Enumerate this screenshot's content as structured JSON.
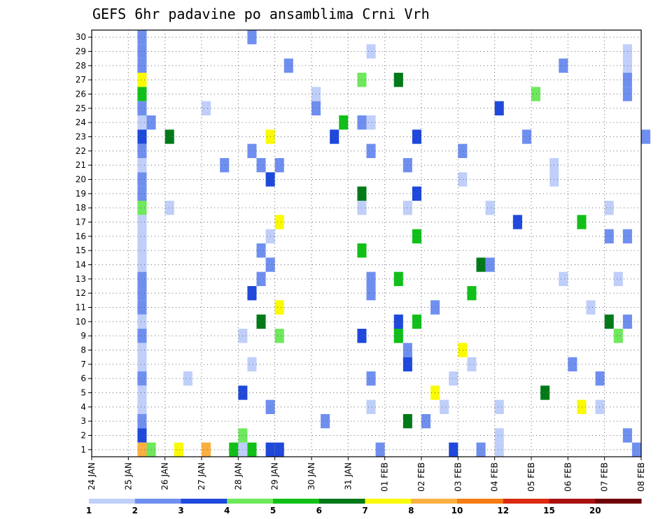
{
  "chart_data": {
    "type": "heatmap",
    "title": "GEFS 6hr padavine po ansamblima Crni Vrh",
    "xlabel": "",
    "ylabel": "",
    "x_tick_labels": [
      "24 JAN",
      "25 JAN",
      "26 JAN",
      "27 JAN",
      "28 JAN",
      "29 JAN",
      "30 JAN",
      "31 JAN",
      "01 FEB",
      "02 FEB",
      "03 FEB",
      "04 FEB",
      "05 FEB",
      "06 FEB",
      "07 FEB",
      "08 FEB"
    ],
    "y_tick_labels": [
      "1",
      "2",
      "3",
      "4",
      "5",
      "6",
      "7",
      "8",
      "9",
      "10",
      "11",
      "12",
      "13",
      "14",
      "15",
      "16",
      "17",
      "18",
      "19",
      "20",
      "21",
      "22",
      "23",
      "24",
      "25",
      "26",
      "27",
      "28",
      "29",
      "30"
    ],
    "xlim": [
      0,
      60
    ],
    "ylim": [
      0.5,
      30.5
    ],
    "time_step_hours": 6,
    "grid": true,
    "colorbar": {
      "position": "bottom",
      "bounds": [
        "1",
        "2",
        "3",
        "4",
        "5",
        "6",
        "7",
        "8",
        "10",
        "12",
        "15",
        "20"
      ],
      "colors": [
        "#bfcffa",
        "#6f8ff0",
        "#1f48dc",
        "#6ee85c",
        "#10c018",
        "#007a18",
        "#fafa00",
        "#fab040",
        "#f57c10",
        "#dc2a10",
        "#a81010",
        "#6e0008"
      ]
    },
    "cells": [
      [
        0,
        5,
        30,
        1
      ],
      [
        0,
        17,
        30,
        1
      ],
      [
        0,
        5,
        29,
        1
      ],
      [
        0,
        30,
        29,
        0
      ],
      [
        0,
        58,
        29,
        0
      ],
      [
        0,
        5,
        28,
        1
      ],
      [
        0,
        21,
        28,
        1
      ],
      [
        0,
        51,
        28,
        1
      ],
      [
        0,
        58,
        28,
        0
      ],
      [
        0,
        5,
        27,
        6
      ],
      [
        0,
        29,
        27,
        3
      ],
      [
        0,
        33,
        27,
        5
      ],
      [
        0,
        58,
        27,
        1
      ],
      [
        0,
        5,
        26,
        4
      ],
      [
        0,
        24,
        26,
        0
      ],
      [
        0,
        48,
        26,
        3
      ],
      [
        0,
        58,
        26,
        1
      ],
      [
        0,
        5,
        25,
        1
      ],
      [
        0,
        12,
        25,
        0
      ],
      [
        0,
        24,
        25,
        1
      ],
      [
        0,
        44,
        25,
        2
      ],
      [
        0,
        5,
        24,
        0
      ],
      [
        0,
        6,
        24,
        1
      ],
      [
        0,
        27,
        24,
        4
      ],
      [
        0,
        29,
        24,
        1
      ],
      [
        0,
        30,
        24,
        0
      ],
      [
        0,
        5,
        23,
        2
      ],
      [
        0,
        8,
        23,
        5
      ],
      [
        0,
        19,
        23,
        6
      ],
      [
        0,
        26,
        23,
        2
      ],
      [
        0,
        35,
        23,
        2
      ],
      [
        0,
        47,
        23,
        1
      ],
      [
        0,
        60,
        23,
        1
      ],
      [
        0,
        5,
        22,
        1
      ],
      [
        0,
        17,
        22,
        1
      ],
      [
        0,
        30,
        22,
        1
      ],
      [
        0,
        40,
        22,
        1
      ],
      [
        0,
        5,
        21,
        0
      ],
      [
        0,
        14,
        21,
        1
      ],
      [
        0,
        18,
        21,
        1
      ],
      [
        0,
        20,
        21,
        1
      ],
      [
        0,
        34,
        21,
        1
      ],
      [
        0,
        50,
        21,
        0
      ],
      [
        0,
        5,
        20,
        1
      ],
      [
        0,
        19,
        20,
        2
      ],
      [
        0,
        40,
        20,
        0
      ],
      [
        0,
        50,
        20,
        0
      ],
      [
        0,
        5,
        19,
        1
      ],
      [
        0,
        29,
        19,
        5
      ],
      [
        0,
        35,
        19,
        2
      ],
      [
        0,
        5,
        18,
        3
      ],
      [
        0,
        8,
        18,
        0
      ],
      [
        0,
        29,
        18,
        0
      ],
      [
        0,
        34,
        18,
        0
      ],
      [
        0,
        43,
        18,
        0
      ],
      [
        0,
        56,
        18,
        0
      ],
      [
        0,
        5,
        17,
        0
      ],
      [
        0,
        20,
        17,
        6
      ],
      [
        0,
        46,
        17,
        2
      ],
      [
        0,
        53,
        17,
        4
      ],
      [
        0,
        5,
        16,
        0
      ],
      [
        0,
        19,
        16,
        0
      ],
      [
        0,
        35,
        16,
        4
      ],
      [
        0,
        56,
        16,
        1
      ],
      [
        0,
        58,
        16,
        1
      ],
      [
        0,
        5,
        15,
        0
      ],
      [
        0,
        18,
        15,
        1
      ],
      [
        0,
        29,
        15,
        4
      ],
      [
        0,
        5,
        14,
        0
      ],
      [
        0,
        19,
        14,
        1
      ],
      [
        0,
        42,
        14,
        5
      ],
      [
        0,
        43,
        14,
        1
      ],
      [
        0,
        5,
        13,
        1
      ],
      [
        0,
        18,
        13,
        1
      ],
      [
        0,
        30,
        13,
        1
      ],
      [
        0,
        33,
        13,
        4
      ],
      [
        0,
        51,
        13,
        0
      ],
      [
        0,
        57,
        13,
        0
      ],
      [
        0,
        5,
        12,
        1
      ],
      [
        0,
        17,
        12,
        2
      ],
      [
        0,
        30,
        12,
        1
      ],
      [
        0,
        41,
        12,
        4
      ],
      [
        0,
        5,
        11,
        1
      ],
      [
        0,
        20,
        11,
        6
      ],
      [
        0,
        37,
        11,
        1
      ],
      [
        0,
        54,
        11,
        0
      ],
      [
        0,
        5,
        10,
        0
      ],
      [
        0,
        18,
        10,
        5
      ],
      [
        0,
        33,
        10,
        2
      ],
      [
        0,
        35,
        10,
        4
      ],
      [
        0,
        56,
        10,
        5
      ],
      [
        0,
        58,
        10,
        1
      ],
      [
        0,
        5,
        9,
        1
      ],
      [
        0,
        16,
        9,
        0
      ],
      [
        0,
        20,
        9,
        3
      ],
      [
        0,
        29,
        9,
        2
      ],
      [
        0,
        33,
        9,
        4
      ],
      [
        0,
        57,
        9,
        3
      ],
      [
        0,
        5,
        8,
        0
      ],
      [
        0,
        34,
        8,
        1
      ],
      [
        0,
        40,
        8,
        6
      ],
      [
        0,
        5,
        7,
        0
      ],
      [
        0,
        17,
        7,
        0
      ],
      [
        0,
        34,
        7,
        2
      ],
      [
        0,
        41,
        7,
        0
      ],
      [
        0,
        52,
        7,
        1
      ],
      [
        0,
        5,
        6,
        1
      ],
      [
        0,
        10,
        6,
        0
      ],
      [
        0,
        30,
        6,
        1
      ],
      [
        0,
        39,
        6,
        0
      ],
      [
        0,
        55,
        6,
        1
      ],
      [
        0,
        5,
        5,
        0
      ],
      [
        0,
        16,
        5,
        2
      ],
      [
        0,
        37,
        5,
        6
      ],
      [
        0,
        49,
        5,
        5
      ],
      [
        0,
        5,
        4,
        0
      ],
      [
        0,
        19,
        4,
        1
      ],
      [
        0,
        30,
        4,
        0
      ],
      [
        0,
        38,
        4,
        0
      ],
      [
        0,
        44,
        4,
        0
      ],
      [
        0,
        53,
        4,
        6
      ],
      [
        0,
        55,
        4,
        0
      ],
      [
        0,
        5,
        3,
        1
      ],
      [
        0,
        25,
        3,
        1
      ],
      [
        0,
        34,
        3,
        5
      ],
      [
        0,
        36,
        3,
        1
      ],
      [
        0,
        5,
        2,
        2
      ],
      [
        0,
        16,
        2,
        3
      ],
      [
        0,
        44,
        2,
        0
      ],
      [
        0,
        58,
        2,
        1
      ],
      [
        0,
        5,
        1,
        7
      ],
      [
        0,
        6,
        1,
        3
      ],
      [
        0,
        9,
        1,
        6
      ],
      [
        0,
        12,
        1,
        7
      ],
      [
        0,
        15,
        1,
        4
      ],
      [
        0,
        16,
        1,
        0
      ],
      [
        0,
        17,
        1,
        4
      ],
      [
        0,
        19,
        1,
        2
      ],
      [
        0,
        20,
        1,
        2
      ],
      [
        0,
        31,
        1,
        1
      ],
      [
        0,
        39,
        1,
        2
      ],
      [
        0,
        42,
        1,
        1
      ],
      [
        0,
        44,
        1,
        0
      ],
      [
        0,
        59,
        1,
        1
      ]
    ]
  }
}
